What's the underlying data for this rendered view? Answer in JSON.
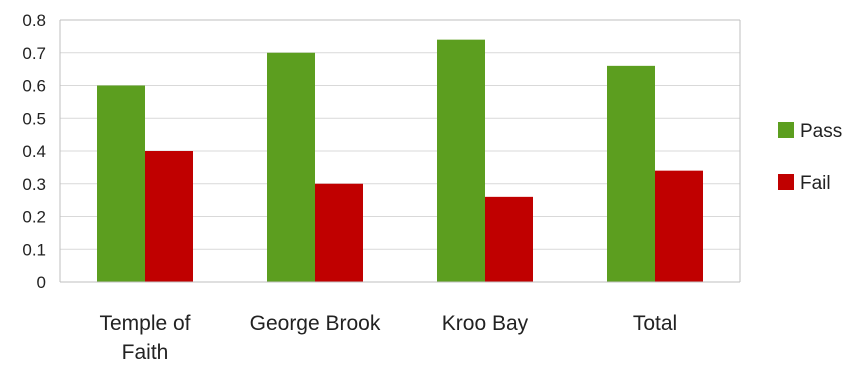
{
  "chart_data": {
    "type": "bar",
    "categories": [
      [
        "Temple of",
        "Faith"
      ],
      [
        "George Brook"
      ],
      [
        "Kroo Bay"
      ],
      [
        "Total"
      ]
    ],
    "series": [
      {
        "name": "Pass",
        "color": "#5c9e1f",
        "values": [
          0.6,
          0.7,
          0.74,
          0.66
        ]
      },
      {
        "name": "Fail",
        "color": "#c00000",
        "values": [
          0.4,
          0.3,
          0.26,
          0.34
        ]
      }
    ],
    "yticks": [
      "0",
      "0.1",
      "0.2",
      "0.3",
      "0.4",
      "0.5",
      "0.6",
      "0.7",
      "0.8"
    ],
    "ylim": [
      0,
      0.8
    ],
    "title": "",
    "xlabel": "",
    "ylabel": "",
    "grid": true,
    "legend_position": "right",
    "gridline_color": "#d9d9d9",
    "axis_color": "#bfbfbf"
  }
}
